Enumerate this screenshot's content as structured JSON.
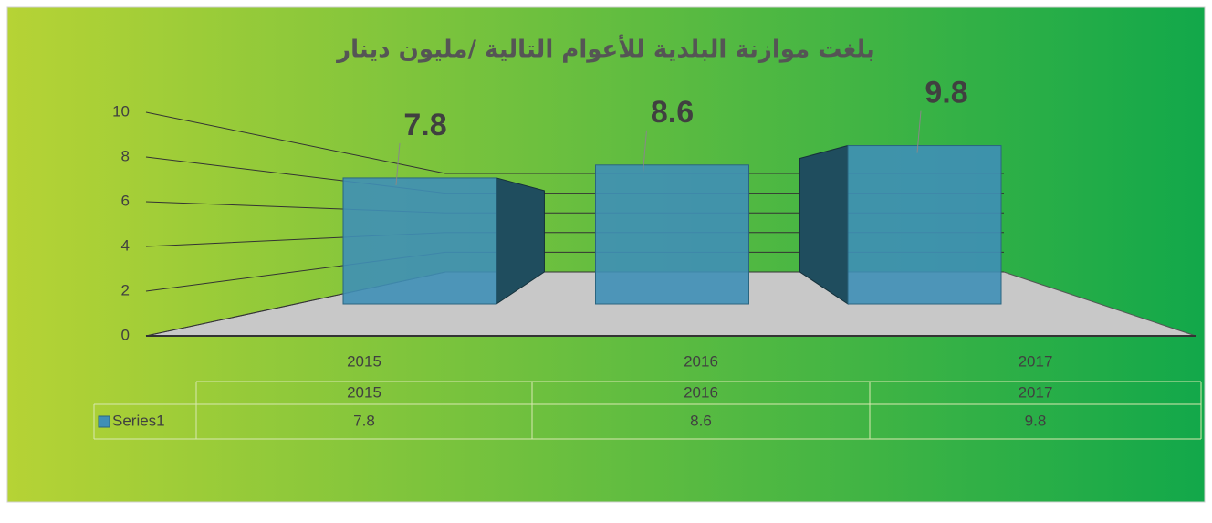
{
  "chart_data": {
    "type": "bar3d",
    "title": "بلغت موازنة البلدية للأعوام التالية /مليون دينار",
    "categories": [
      "2015",
      "2016",
      "2017"
    ],
    "series": [
      {
        "name": "Series1",
        "color": "#3f8fb6",
        "values": [
          7.8,
          8.6,
          9.8
        ]
      }
    ],
    "ylim": [
      0,
      10
    ],
    "yticks": [
      0,
      2,
      4,
      6,
      8,
      10
    ],
    "grid": true,
    "data_table": true
  }
}
